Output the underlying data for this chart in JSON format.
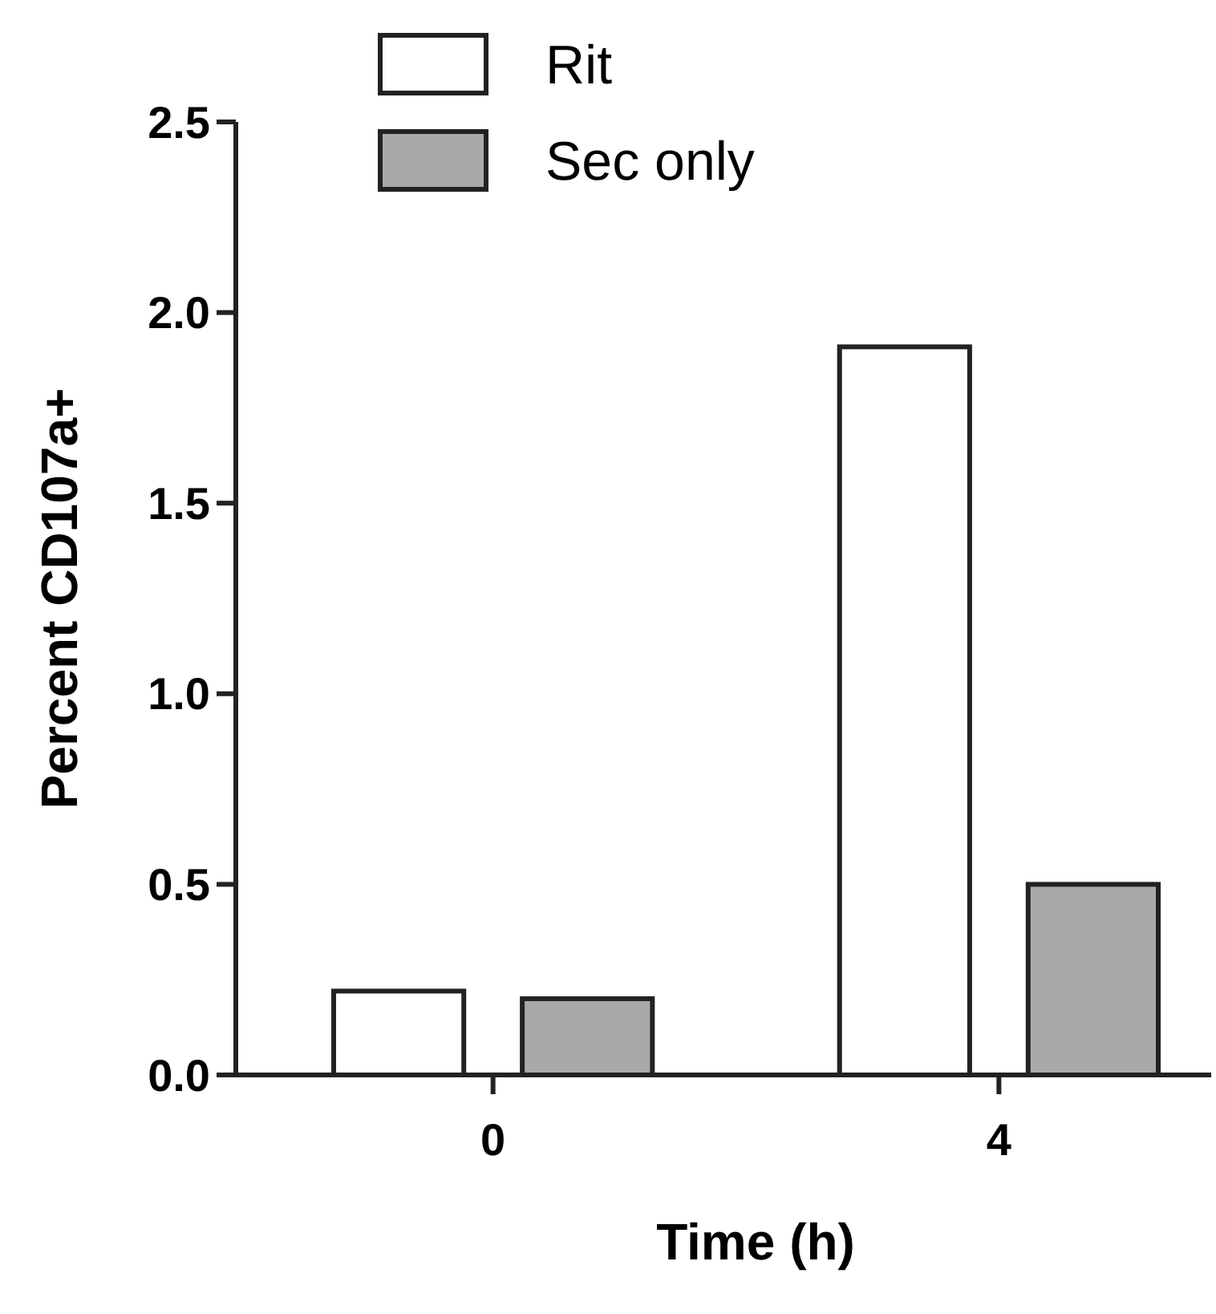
{
  "chart_data": {
    "type": "bar",
    "xlabel": "Time (h)",
    "ylabel": "Percent CD107a+",
    "categories": [
      "0",
      "4"
    ],
    "series": [
      {
        "name": "Rit",
        "color": "#ffffff",
        "values": [
          0.22,
          1.91
        ]
      },
      {
        "name": "Sec only",
        "color": "#a9a9a9",
        "values": [
          0.2,
          0.5
        ]
      }
    ],
    "ylim": [
      0,
      2.5
    ],
    "yticks": [
      {
        "value": 0,
        "label": "0.0"
      },
      {
        "value": 0.5,
        "label": "0.5"
      },
      {
        "value": 1,
        "label": "1.0"
      },
      {
        "value": 1.5,
        "label": "1.5"
      },
      {
        "value": 2,
        "label": "2.0"
      },
      {
        "value": 2.5,
        "label": "2.5"
      }
    ],
    "legend": "top left",
    "grid": false
  }
}
